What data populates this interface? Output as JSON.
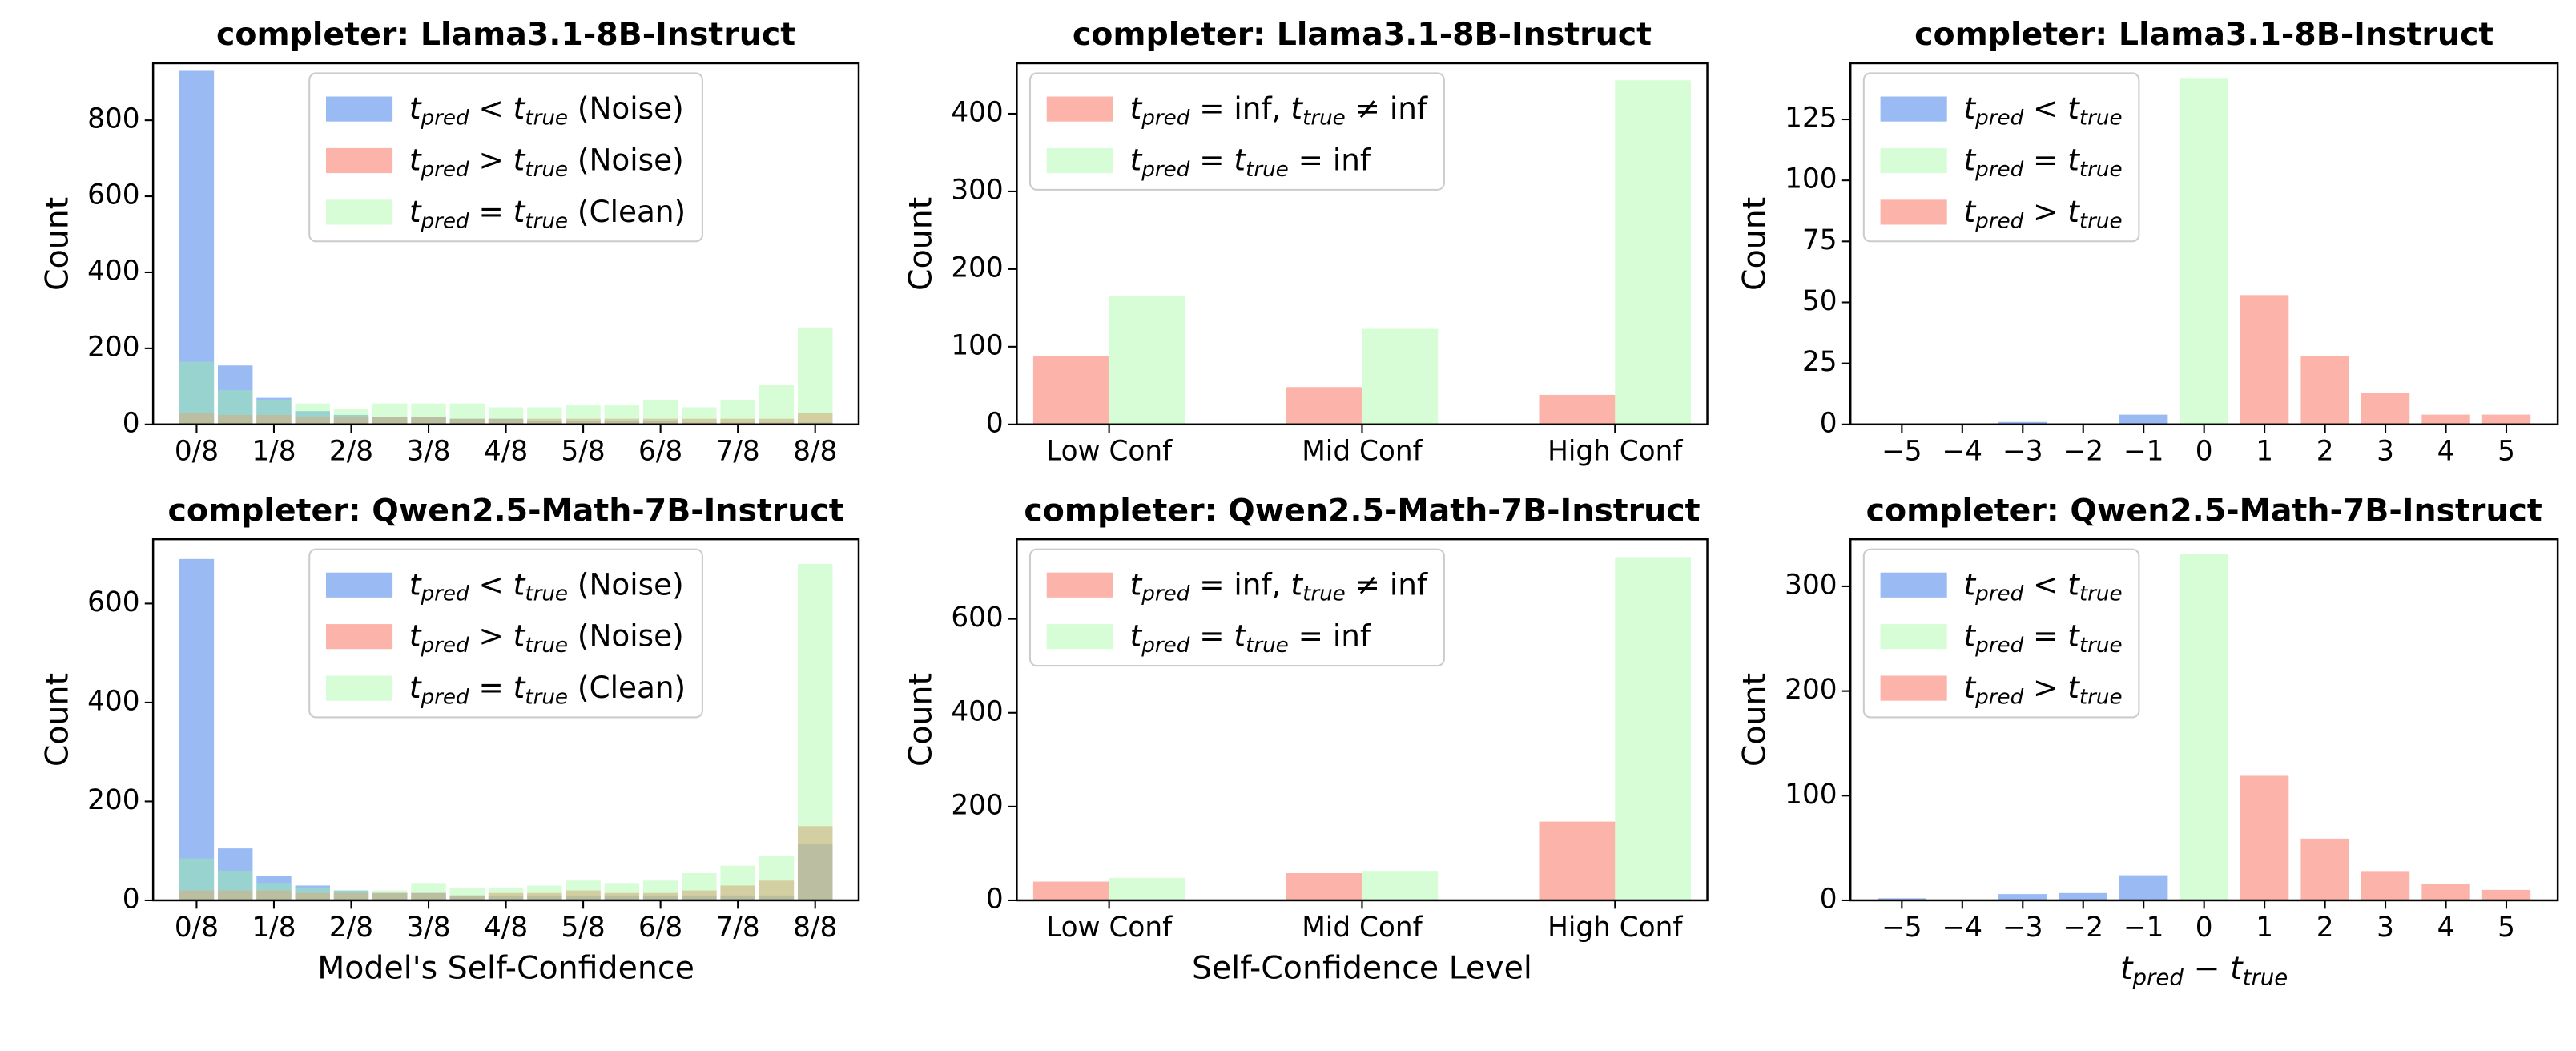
{
  "chart_data": [
    {
      "type": "overlay",
      "title": "completer: Llama3.1-8B-Instruct",
      "ylabel": "Count",
      "categories": [
        "0/8",
        null,
        "1/8",
        null,
        "2/8",
        null,
        "3/8",
        null,
        "4/8",
        null,
        "5/8",
        null,
        "6/8",
        null,
        "7/8",
        null,
        "8/8"
      ],
      "series": [
        {
          "name": "t_pred < t_true (Noise)",
          "color": "#6495ed",
          "alpha": 0.65,
          "values": [
            930,
            155,
            70,
            35,
            25,
            20,
            20,
            15,
            15,
            10,
            10,
            10,
            10,
            5,
            5,
            5,
            5
          ]
        },
        {
          "name": "t_pred > t_true (Noise)",
          "color": "#fa8072",
          "alpha": 0.6,
          "values": [
            30,
            25,
            25,
            20,
            20,
            20,
            20,
            15,
            15,
            15,
            15,
            15,
            15,
            15,
            15,
            15,
            30
          ]
        },
        {
          "name": "t_pred = t_true (Clean)",
          "color": "#98fb98",
          "alpha": 0.4,
          "values": [
            165,
            90,
            65,
            55,
            40,
            55,
            55,
            55,
            45,
            45,
            50,
            50,
            65,
            45,
            65,
            105,
            255
          ]
        }
      ],
      "ylim": [
        0,
        950
      ],
      "yticks": [
        0,
        200,
        400,
        600,
        800
      ],
      "legend": "upper center"
    },
    {
      "type": "grouped",
      "title": "completer: Llama3.1-8B-Instruct",
      "ylabel": "Count",
      "categories": [
        "Low Conf",
        "Mid Conf",
        "High Conf"
      ],
      "series": [
        {
          "name": "t_pred = inf, t_true ≠ inf",
          "color": "#fa8072",
          "alpha": 0.6,
          "values": [
            88,
            48,
            38
          ]
        },
        {
          "name": "t_pred = t_true = inf",
          "color": "#98fb98",
          "alpha": 0.4,
          "values": [
            165,
            123,
            443
          ]
        }
      ],
      "ylim": [
        0,
        465
      ],
      "yticks": [
        0,
        100,
        200,
        300,
        400
      ],
      "legend": "upper left"
    },
    {
      "type": "numeric",
      "title": "completer: Llama3.1-8B-Instruct",
      "ylabel": "Count",
      "series": [
        {
          "name": "t_pred < t_true",
          "color": "#6495ed",
          "alpha": 0.65,
          "x": [
            -5,
            -4,
            -3,
            -2,
            -1
          ],
          "values": [
            0,
            0,
            1,
            0,
            4
          ]
        },
        {
          "name": "t_pred = t_true",
          "color": "#98fb98",
          "alpha": 0.4,
          "x": [
            0
          ],
          "values": [
            142
          ]
        },
        {
          "name": "t_pred > t_true",
          "color": "#fa8072",
          "alpha": 0.6,
          "x": [
            1,
            2,
            3,
            4,
            5
          ],
          "values": [
            53,
            28,
            13,
            4,
            4
          ]
        }
      ],
      "xlim": [
        -5.85,
        5.85
      ],
      "xticks": [
        {
          "value": -5,
          "label": "−5"
        },
        {
          "value": -4,
          "label": "−4"
        },
        {
          "value": -3,
          "label": "−3"
        },
        {
          "value": -2,
          "label": "−2"
        },
        {
          "value": -1,
          "label": "−1"
        },
        0,
        1,
        2,
        3,
        4,
        5
      ],
      "ylim": [
        0,
        148
      ],
      "yticks": [
        0,
        25,
        50,
        75,
        100,
        125
      ],
      "legend": "upper left"
    },
    {
      "type": "overlay",
      "title": "completer: Qwen2.5-Math-7B-Instruct",
      "ylabel": "Count",
      "xlabel": "Model's Self-Confidence",
      "categories": [
        "0/8",
        null,
        "1/8",
        null,
        "2/8",
        null,
        "3/8",
        null,
        "4/8",
        null,
        "5/8",
        null,
        "6/8",
        null,
        "7/8",
        null,
        "8/8"
      ],
      "series": [
        {
          "name": "t_pred < t_true (Noise)",
          "color": "#6495ed",
          "alpha": 0.65,
          "values": [
            690,
            105,
            50,
            30,
            20,
            15,
            15,
            10,
            10,
            10,
            10,
            10,
            10,
            10,
            10,
            10,
            115
          ]
        },
        {
          "name": "t_pred > t_true (Noise)",
          "color": "#fa8072",
          "alpha": 0.6,
          "values": [
            20,
            20,
            20,
            15,
            15,
            15,
            15,
            10,
            15,
            15,
            20,
            15,
            15,
            20,
            30,
            40,
            150
          ]
        },
        {
          "name": "t_pred = t_true (Clean)",
          "color": "#98fb98",
          "alpha": 0.4,
          "values": [
            85,
            60,
            35,
            25,
            20,
            20,
            35,
            25,
            25,
            30,
            40,
            35,
            40,
            55,
            70,
            90,
            680
          ]
        }
      ],
      "ylim": [
        0,
        730
      ],
      "yticks": [
        0,
        200,
        400,
        600
      ],
      "legend": "upper center"
    },
    {
      "type": "grouped",
      "title": "completer: Qwen2.5-Math-7B-Instruct",
      "ylabel": "Count",
      "xlabel": "Self-Confidence Level",
      "categories": [
        "Low Conf",
        "Mid Conf",
        "High Conf"
      ],
      "series": [
        {
          "name": "t_pred = inf, t_true ≠ inf",
          "color": "#fa8072",
          "alpha": 0.6,
          "values": [
            40,
            58,
            168
          ]
        },
        {
          "name": "t_pred = t_true = inf",
          "color": "#98fb98",
          "alpha": 0.4,
          "values": [
            48,
            63,
            732
          ]
        }
      ],
      "ylim": [
        0,
        770
      ],
      "yticks": [
        0,
        200,
        400,
        600
      ],
      "legend": "upper left"
    },
    {
      "type": "numeric",
      "title": "completer: Qwen2.5-Math-7B-Instruct",
      "ylabel": "Count",
      "xlabel": "t_pred − t_true",
      "series": [
        {
          "name": "t_pred < t_true",
          "color": "#6495ed",
          "alpha": 0.65,
          "x": [
            -5,
            -4,
            -3,
            -2,
            -1
          ],
          "values": [
            2,
            0,
            6,
            7,
            24
          ]
        },
        {
          "name": "t_pred = t_true",
          "color": "#98fb98",
          "alpha": 0.4,
          "x": [
            0
          ],
          "values": [
            331
          ]
        },
        {
          "name": "t_pred > t_true",
          "color": "#fa8072",
          "alpha": 0.6,
          "x": [
            1,
            2,
            3,
            4,
            5
          ],
          "values": [
            119,
            59,
            28,
            16,
            10
          ]
        }
      ],
      "xlim": [
        -5.85,
        5.85
      ],
      "xticks": [
        {
          "value": -5,
          "label": "−5"
        },
        {
          "value": -4,
          "label": "−4"
        },
        {
          "value": -3,
          "label": "−3"
        },
        {
          "value": -2,
          "label": "−2"
        },
        {
          "value": -1,
          "label": "−1"
        },
        0,
        1,
        2,
        3,
        4,
        5
      ],
      "ylim": [
        0,
        345
      ],
      "yticks": [
        0,
        100,
        200,
        300
      ],
      "legend": "upper left"
    }
  ]
}
